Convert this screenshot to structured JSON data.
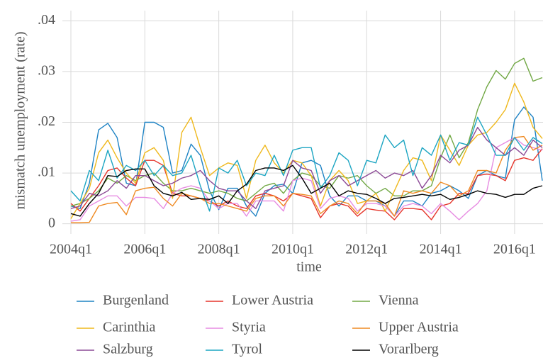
{
  "chart_data": {
    "type": "line",
    "xlabel": "time",
    "ylabel": "mismatch unemployment (rate)",
    "categories": [
      "2004q1",
      null,
      null,
      null,
      null,
      null,
      null,
      null,
      "2006q1",
      null,
      null,
      null,
      null,
      null,
      null,
      null,
      "2008q1",
      null,
      null,
      null,
      null,
      null,
      null,
      null,
      "2010q1",
      null,
      null,
      null,
      null,
      null,
      null,
      null,
      "2012q1",
      null,
      null,
      null,
      null,
      null,
      null,
      null,
      "2014q1",
      null,
      null,
      null,
      null,
      null,
      null,
      null,
      "2016q1",
      null,
      null,
      null
    ],
    "ylim": [
      -0.002,
      0.042
    ],
    "yticks": [
      {
        "value": 0,
        "label": "0"
      },
      {
        "value": 0.01,
        "label": ".01"
      },
      {
        "value": 0.02,
        "label": ".02"
      },
      {
        "value": 0.03,
        "label": ".03"
      },
      {
        "value": 0.04,
        "label": ".04"
      }
    ],
    "grid": true,
    "legend": "bottom",
    "series": [
      {
        "name": "Burgenland",
        "color": "#1f83c4",
        "values": [
          0.0035,
          0.003,
          0.008,
          0.0185,
          0.0198,
          0.017,
          0.008,
          0.0075,
          0.02,
          0.02,
          0.019,
          0.01,
          0.0105,
          0.0157,
          0.0135,
          0.0065,
          0.0028,
          0.007,
          0.007,
          0.0035,
          0.0015,
          0.006,
          0.0075,
          0.0078,
          0.006,
          0.012,
          0.0125,
          0.0115,
          0.0055,
          0.0035,
          0.0055,
          0.0055,
          0.0045,
          0.0045,
          0.0035,
          0.0015,
          0.0045,
          0.0045,
          0.0035,
          0.006,
          0.0065,
          0.0075,
          0.0065,
          0.005,
          0.0095,
          0.0105,
          0.0095,
          0.009,
          0.0205,
          0.023,
          0.021,
          0.0085
        ]
      },
      {
        "name": "Lower Austria",
        "color": "#e5352b",
        "values": [
          0.004,
          0.0025,
          0.005,
          0.0075,
          0.0105,
          0.011,
          0.009,
          0.0075,
          0.0125,
          0.0125,
          0.0115,
          0.006,
          0.0055,
          0.0055,
          0.005,
          0.0045,
          0.0035,
          0.0045,
          0.0035,
          0.003,
          0.0055,
          0.006,
          0.0055,
          0.0045,
          0.006,
          0.0055,
          0.005,
          0.0012,
          0.0035,
          0.004,
          0.0035,
          0.0015,
          0.003,
          0.0027,
          0.0025,
          0.0008,
          0.003,
          0.003,
          0.0028,
          0.0008,
          0.0035,
          0.004,
          0.006,
          0.006,
          0.0095,
          0.0098,
          0.0095,
          0.0085,
          0.0125,
          0.013,
          0.0125,
          0.0148
        ]
      },
      {
        "name": "Vienna",
        "color": "#72a845",
        "values": [
          0.0035,
          0.004,
          0.005,
          0.0065,
          0.009,
          0.008,
          0.0095,
          0.0085,
          0.0095,
          0.01,
          0.008,
          0.0065,
          0.0065,
          0.007,
          0.0065,
          0.006,
          0.0065,
          0.006,
          0.005,
          0.0045,
          0.006,
          0.0075,
          0.008,
          0.006,
          0.0085,
          0.01,
          0.0095,
          0.0075,
          0.007,
          0.0095,
          0.009,
          0.0095,
          0.0075,
          0.006,
          0.007,
          0.0055,
          0.0055,
          0.0065,
          0.0065,
          0.0075,
          0.013,
          0.0175,
          0.013,
          0.016,
          0.0225,
          0.027,
          0.0302,
          0.0285,
          0.0316,
          0.0326,
          0.0281,
          0.0288
        ]
      },
      {
        "name": "Carinthia",
        "color": "#efb81c",
        "values": [
          0.001,
          0.004,
          0.007,
          0.014,
          0.0165,
          0.013,
          0.01,
          0.008,
          0.014,
          0.015,
          0.0125,
          0.005,
          0.018,
          0.021,
          0.015,
          0.0095,
          0.011,
          0.012,
          0.0115,
          0.005,
          0.0125,
          0.0155,
          0.012,
          0.01,
          0.0125,
          0.012,
          0.0095,
          0.0035,
          0.0085,
          0.0105,
          0.0085,
          0.004,
          0.0045,
          0.006,
          0.0025,
          0.0065,
          0.0105,
          0.013,
          0.0125,
          0.0085,
          0.0175,
          0.0145,
          0.0115,
          0.0155,
          0.0175,
          0.018,
          0.02,
          0.0225,
          0.0277,
          0.024,
          0.019,
          0.0168
        ]
      },
      {
        "name": "Styria",
        "color": "#e78ce2",
        "values": [
          0.0005,
          0.0008,
          0.0035,
          0.0045,
          0.0055,
          0.0055,
          0.0035,
          0.0052,
          0.0052,
          0.005,
          0.003,
          0.006,
          0.007,
          0.0075,
          0.007,
          0.0045,
          0.003,
          0.004,
          0.004,
          0.0015,
          0.0045,
          0.0045,
          0.0045,
          0.0025,
          0.0085,
          0.009,
          0.0085,
          0.003,
          0.005,
          0.0055,
          0.005,
          0.0025,
          0.004,
          0.004,
          0.0035,
          0.0015,
          0.0035,
          0.004,
          0.0035,
          0.002,
          0.004,
          0.0025,
          0.0008,
          0.0025,
          0.004,
          0.0065,
          0.015,
          0.016,
          0.017,
          0.0155,
          0.015,
          0.0145
        ]
      },
      {
        "name": "Upper Austria",
        "color": "#ef8a22",
        "values": [
          0.0002,
          0.0002,
          0.0003,
          0.0035,
          0.004,
          0.0042,
          0.0018,
          0.0065,
          0.007,
          0.0072,
          0.005,
          0.0035,
          0.006,
          0.0055,
          0.005,
          0.004,
          0.004,
          0.0035,
          0.003,
          0.0025,
          0.005,
          0.0055,
          0.0055,
          0.0035,
          0.006,
          0.0058,
          0.0055,
          0.002,
          0.0035,
          0.0045,
          0.004,
          0.002,
          0.0045,
          0.0045,
          0.004,
          0.0015,
          0.0065,
          0.006,
          0.0065,
          0.006,
          0.0082,
          0.0075,
          0.0055,
          0.0065,
          0.0105,
          0.0105,
          0.01,
          0.0145,
          0.017,
          0.0172,
          0.0145,
          0.0155
        ]
      },
      {
        "name": "Salzburg",
        "color": "#8c4a96",
        "values": [
          0.003,
          0.0035,
          0.006,
          0.0055,
          0.0065,
          0.0085,
          0.007,
          0.0095,
          0.0095,
          0.0085,
          0.0075,
          0.008,
          0.009,
          0.0095,
          0.0105,
          0.0085,
          0.007,
          0.0065,
          0.0065,
          0.0045,
          0.003,
          0.0065,
          0.007,
          0.0075,
          0.0125,
          0.011,
          0.0105,
          0.006,
          0.0085,
          0.0095,
          0.0075,
          0.0085,
          0.0095,
          0.0105,
          0.009,
          0.01,
          0.0095,
          0.0105,
          0.007,
          0.0095,
          0.0135,
          0.012,
          0.0145,
          0.0155,
          0.019,
          0.0165,
          0.015,
          0.0135,
          0.015,
          0.0135,
          0.0165,
          0.015
        ]
      },
      {
        "name": "Tyrol",
        "color": "#1ca5c2",
        "values": [
          0.0065,
          0.0045,
          0.0105,
          0.0085,
          0.0145,
          0.009,
          0.0115,
          0.0105,
          0.0125,
          0.0095,
          0.0115,
          0.0095,
          0.01,
          0.0135,
          0.0075,
          0.0025,
          0.011,
          0.01,
          0.0125,
          0.0075,
          0.01,
          0.0095,
          0.0135,
          0.0095,
          0.0145,
          0.015,
          0.015,
          0.007,
          0.0095,
          0.014,
          0.0125,
          0.0075,
          0.0125,
          0.012,
          0.0175,
          0.015,
          0.0165,
          0.0095,
          0.015,
          0.0135,
          0.0175,
          0.0125,
          0.016,
          0.0155,
          0.021,
          0.0175,
          0.0135,
          0.0135,
          0.017,
          0.0145,
          0.017,
          0.0158
        ]
      },
      {
        "name": "Vorarlberg",
        "color": "#000000",
        "values": [
          0.002,
          0.0015,
          0.004,
          0.006,
          0.0095,
          0.0093,
          0.0105,
          0.0108,
          0.0108,
          0.0075,
          0.006,
          0.0055,
          0.0062,
          0.0048,
          0.005,
          0.0048,
          0.0055,
          0.004,
          0.0065,
          0.0078,
          0.0105,
          0.011,
          0.011,
          0.0105,
          0.0115,
          0.009,
          0.006,
          0.007,
          0.008,
          0.0055,
          0.0065,
          0.006,
          0.0058,
          0.005,
          0.004,
          0.005,
          0.0052,
          0.0055,
          0.0058,
          0.0055,
          0.0058,
          0.0048,
          0.0052,
          0.0058,
          0.0065,
          0.006,
          0.0058,
          0.0052,
          0.0058,
          0.0058,
          0.007,
          0.0075
        ]
      }
    ]
  }
}
